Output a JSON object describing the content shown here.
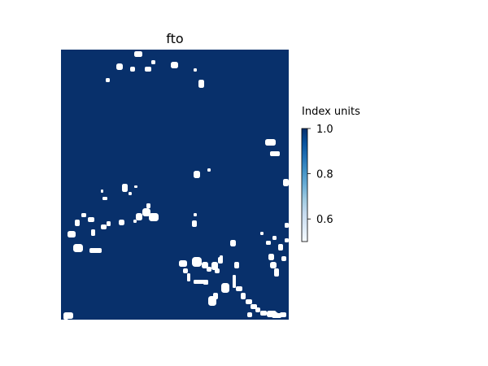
{
  "chart_data": {
    "type": "heatmap",
    "title": "fto",
    "xlabel": "",
    "ylabel": "",
    "axes_visible": false,
    "colormap": "Blues",
    "colorbar": {
      "label": "Index units",
      "range": [
        0.5,
        1.0
      ],
      "ticks": [
        0.6,
        0.8,
        1.0
      ],
      "tick_labels": [
        "0.6",
        "0.8",
        "1.0"
      ],
      "placement": "right"
    },
    "grid": false,
    "value_description": "binary mask field: almost all cells = 1.0, scattered small patches = 0.5",
    "high_value": 1.0,
    "low_value": 0.5,
    "colors": {
      "high": "#08306b",
      "low": "#ffffff"
    }
  }
}
